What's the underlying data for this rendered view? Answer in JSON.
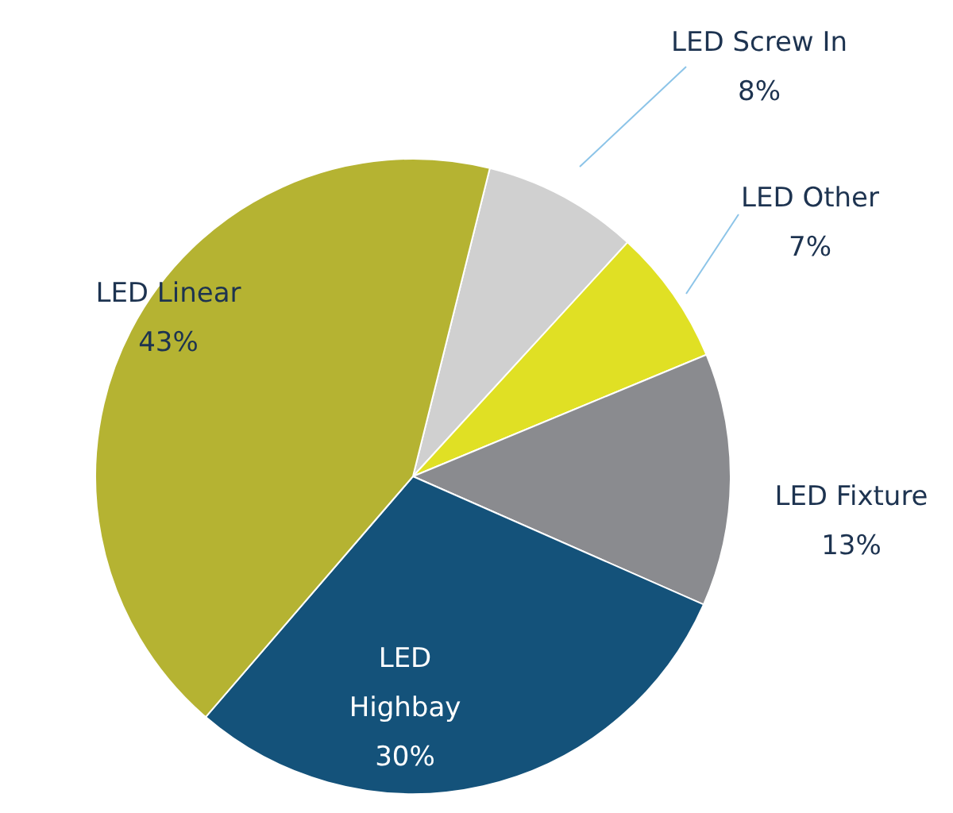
{
  "chart_data": {
    "type": "pie",
    "categories": [
      "LED Screw In",
      "LED Other",
      "LED Fixture",
      "LED Highbay",
      "LED Linear"
    ],
    "values": [
      8,
      7,
      13,
      30,
      43
    ],
    "value_labels": [
      "8%",
      "7%",
      "13%",
      "30%",
      "43%"
    ],
    "colors": [
      "#d0d0d0",
      "#e0e024",
      "#8a8b8f",
      "#14527a",
      "#b5b332"
    ]
  }
}
